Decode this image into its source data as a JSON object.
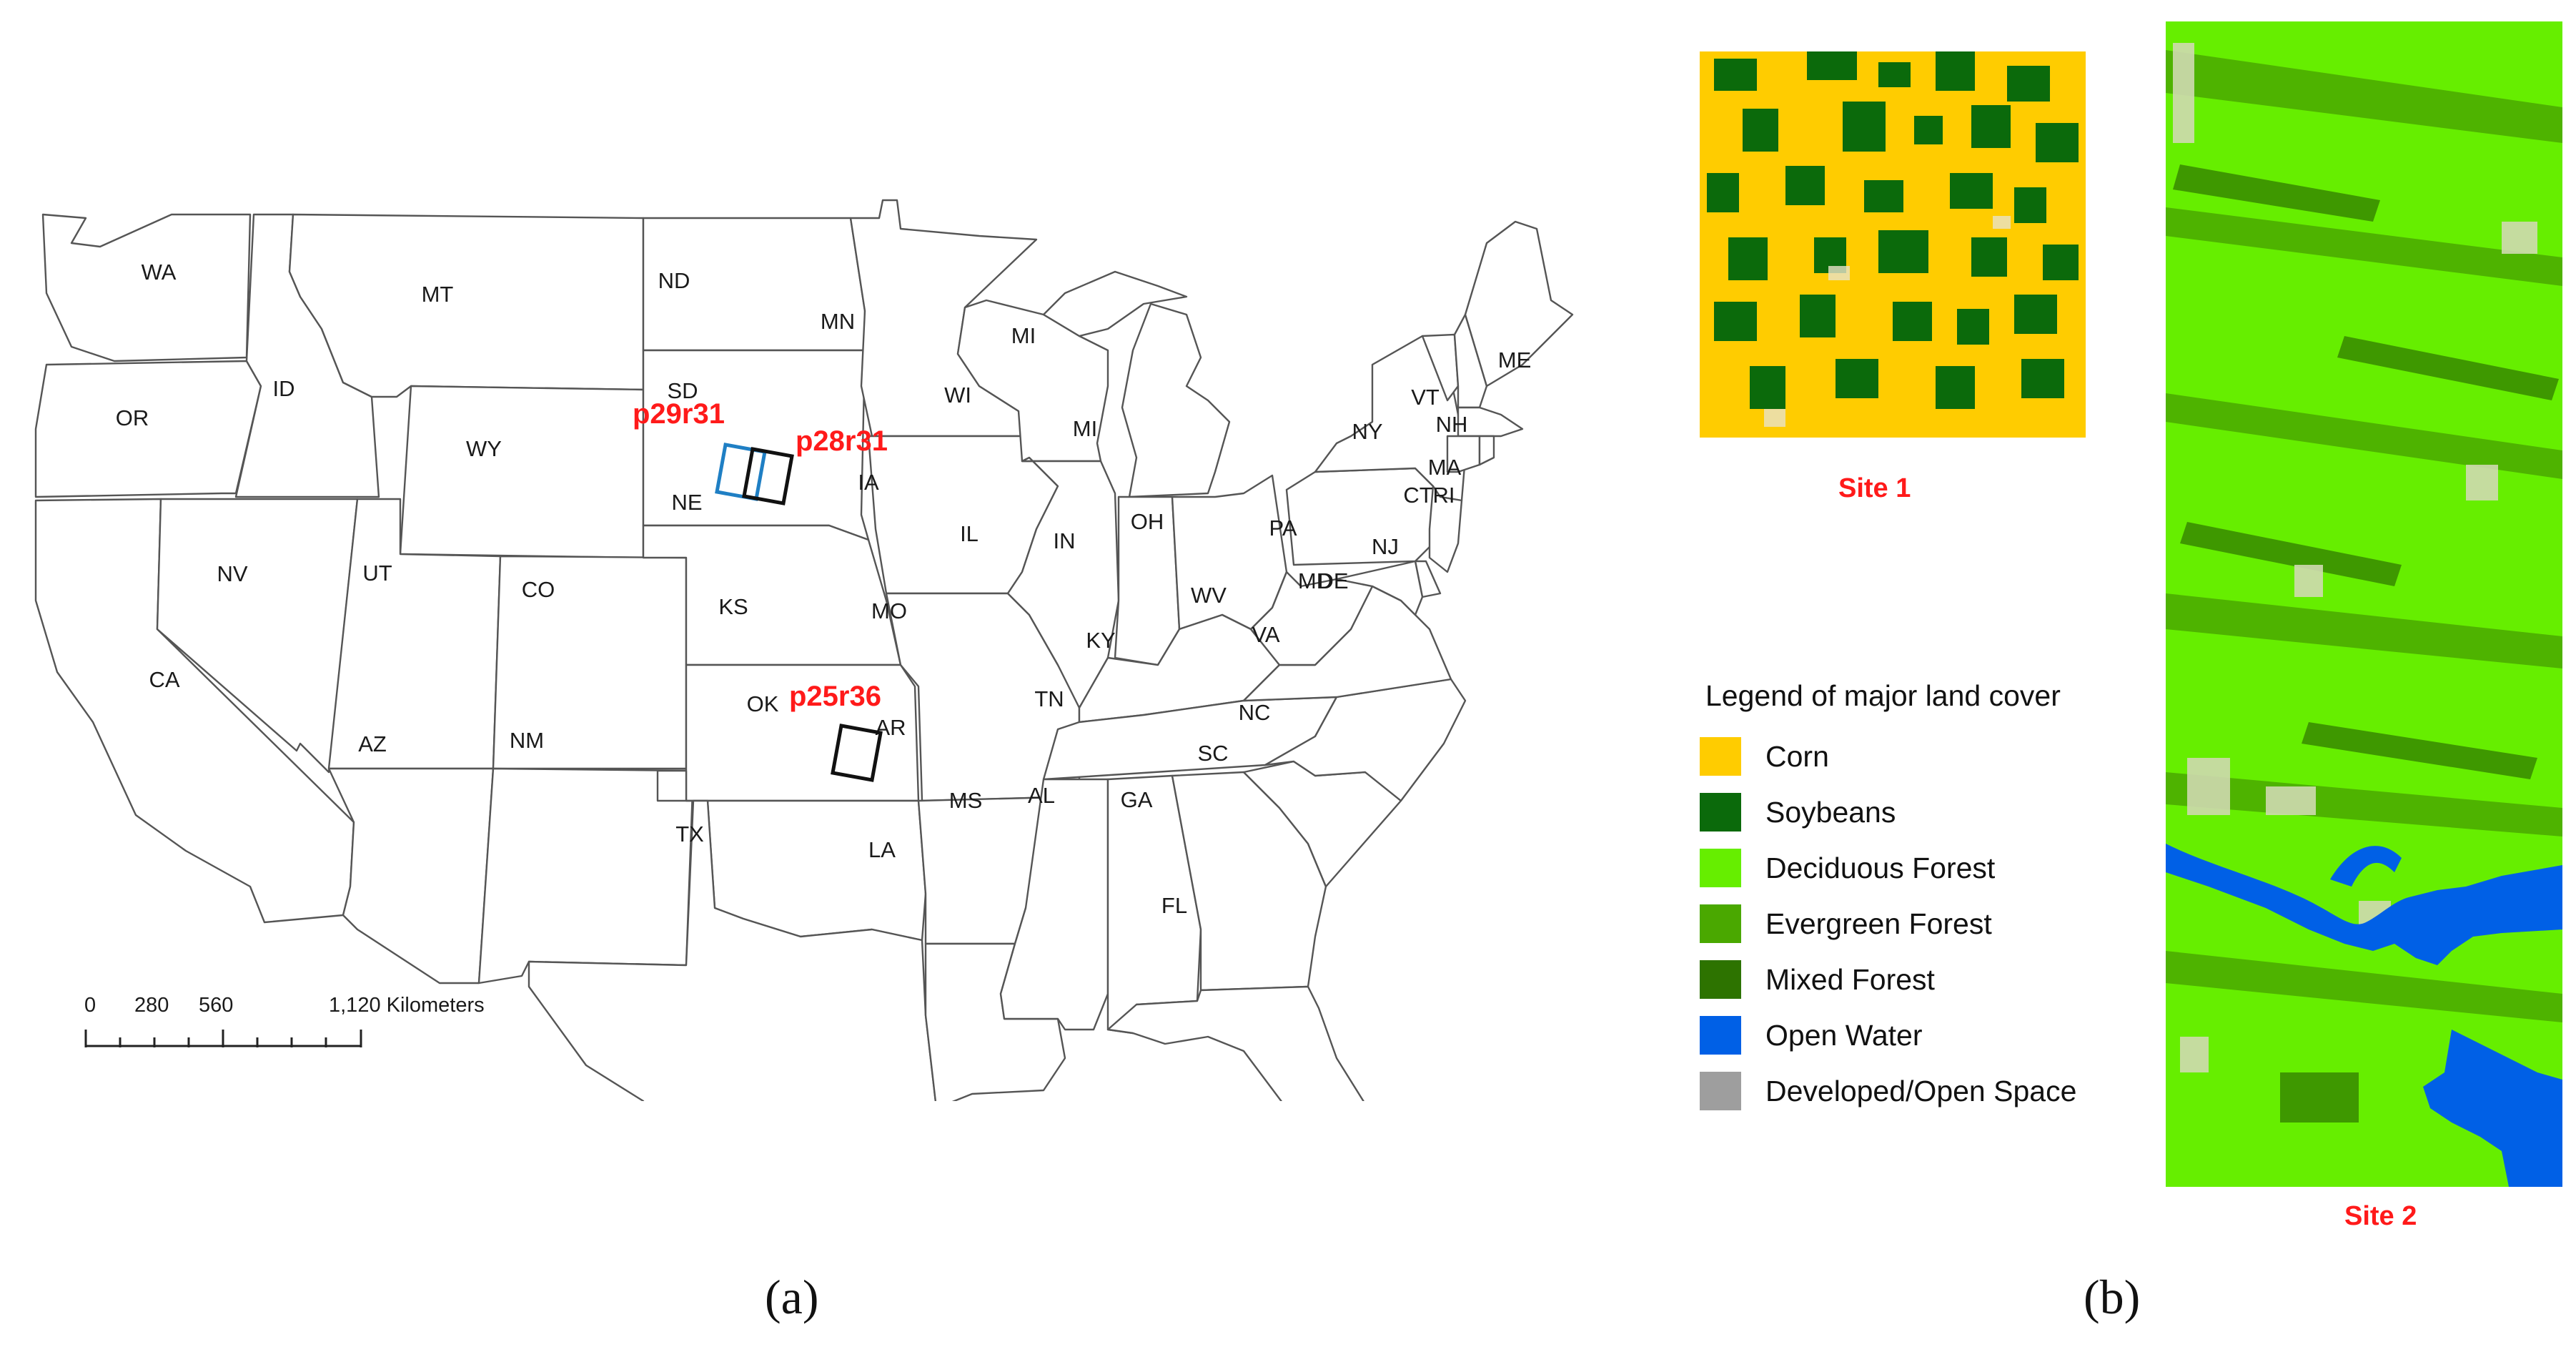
{
  "panels": {
    "a": {
      "caption": "(a)",
      "states": {
        "WA": "WA",
        "OR": "OR",
        "CA": "CA",
        "ID": "ID",
        "NV": "NV",
        "MT": "MT",
        "WY": "WY",
        "UT": "UT",
        "AZ": "AZ",
        "CO": "CO",
        "NM": "NM",
        "ND": "ND",
        "SD": "SD",
        "NE": "NE",
        "KS": "KS",
        "OK": "OK",
        "TX": "TX",
        "MN": "MN",
        "IA": "IA",
        "MO": "MO",
        "AR": "AR",
        "LA": "LA",
        "WI": "WI",
        "IL": "IL",
        "MI": "MI",
        "MI_UP": "MI",
        "IN": "IN",
        "OH": "OH",
        "KY": "KY",
        "TN": "TN",
        "MS": "MS",
        "AL": "AL",
        "GA": "GA",
        "FL": "FL",
        "SC": "SC",
        "NC": "NC",
        "VA": "VA",
        "WV": "WV",
        "PA": "PA",
        "NY": "NY",
        "VT": "VT",
        "NH": "NH",
        "ME": "ME",
        "MA": "MA",
        "CT": "CT",
        "RI": "RI",
        "NJ": "NJ",
        "MD": "MD",
        "DE": "DE"
      },
      "scenes": [
        {
          "label": "p29r31",
          "color": "#1f7fc4"
        },
        {
          "label": "p28r31",
          "color": "#111111"
        },
        {
          "label": "p25r36",
          "color": "#111111"
        }
      ],
      "scale_bar": {
        "ticks": [
          "0",
          "280",
          "560",
          "1,120 Kilometers"
        ]
      }
    },
    "b": {
      "caption": "(b)",
      "site1_label": "Site 1",
      "site2_label": "Site 2",
      "legend": {
        "title": "Legend of major land cover",
        "items": [
          {
            "label": "Corn",
            "color": "#ffcc00"
          },
          {
            "label": "Soybeans",
            "color": "#0b6a0b"
          },
          {
            "label": "Deciduous Forest",
            "color": "#66ee00"
          },
          {
            "label": "Evergreen Forest",
            "color": "#4aa800"
          },
          {
            "label": "Mixed Forest",
            "color": "#2d7300"
          },
          {
            "label": "Open Water",
            "color": "#0060e6"
          },
          {
            "label": "Developed/Open Space",
            "color": "#9e9e9e"
          }
        ]
      }
    }
  }
}
